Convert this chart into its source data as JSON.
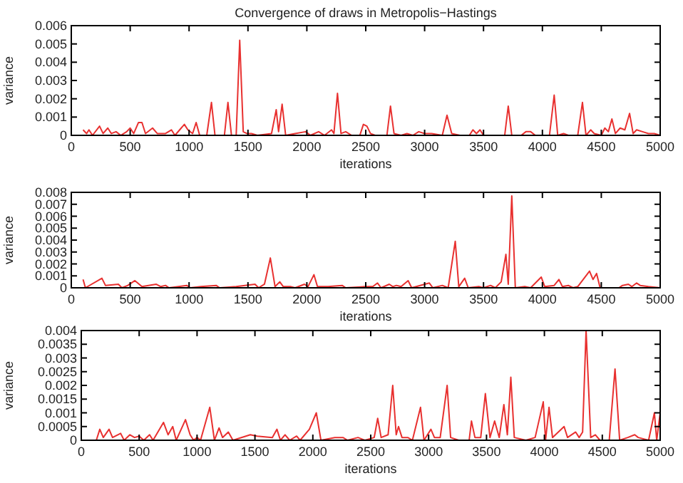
{
  "chart_data": [
    {
      "type": "line",
      "title": "Convergence of draws in Metropolis−Hastings",
      "xlabel": "iterations",
      "ylabel": "variance",
      "xlim": [
        0,
        5000
      ],
      "ylim": [
        0,
        0.006
      ],
      "xticks": [
        0,
        500,
        1000,
        1500,
        2000,
        2500,
        3000,
        3500,
        4000,
        4500,
        5000
      ],
      "yticks": [
        0,
        0.001,
        0.002,
        0.003,
        0.004,
        0.005,
        0.006
      ],
      "x": [
        100,
        130,
        150,
        180,
        240,
        270,
        310,
        340,
        380,
        420,
        470,
        500,
        530,
        570,
        600,
        630,
        690,
        730,
        800,
        850,
        880,
        960,
        990,
        1030,
        1060,
        1090,
        1150,
        1190,
        1220,
        1300,
        1330,
        1360,
        1400,
        1430,
        1460,
        1490,
        1530,
        1580,
        1700,
        1740,
        1760,
        1790,
        1820,
        1900,
        1990,
        2030,
        2100,
        2150,
        2210,
        2230,
        2260,
        2290,
        2330,
        2380,
        2450,
        2480,
        2510,
        2540,
        2580,
        2680,
        2710,
        2740,
        2800,
        2850,
        2900,
        2950,
        3000,
        3060,
        3150,
        3190,
        3230,
        3300,
        3380,
        3410,
        3440,
        3470,
        3500,
        3680,
        3710,
        3740,
        3820,
        3860,
        3900,
        3940,
        4060,
        4100,
        4130,
        4180,
        4220,
        4300,
        4340,
        4370,
        4410,
        4440,
        4500,
        4530,
        4560,
        4590,
        4620,
        4660,
        4700,
        4740,
        4770,
        4800,
        4850,
        4900,
        4950,
        5000
      ],
      "series": [
        {
          "color": "#e8302f",
          "values": [
            0.0003,
            0.0001,
            0.0003,
            0,
            0.0005,
            0.0001,
            0.0004,
            0.0001,
            0.0002,
            0,
            0.0002,
            0.0004,
            0.0001,
            0.0007,
            0.0007,
            0.0001,
            0.0004,
            0.0001,
            0.0001,
            0.0003,
            0,
            0.0006,
            0.0003,
            0.0001,
            0.0007,
            0,
            0,
            0.0018,
            0,
            0,
            0.0018,
            0,
            0,
            0.0052,
            0.0002,
            0.0001,
            0.0001,
            0,
            0.0001,
            0.0014,
            0.0002,
            0.0017,
            0,
            0.0001,
            0.0002,
            0,
            0.0002,
            0,
            0.0003,
            0.0001,
            0.0023,
            0.0001,
            0.0002,
            0,
            0,
            0.0006,
            0.0005,
            0.0001,
            0,
            0,
            0.0016,
            0.0001,
            0,
            0.0001,
            0,
            0.0002,
            0.0001,
            0.0001,
            0,
            0.0011,
            0.0001,
            0,
            0,
            0.0003,
            0.0001,
            0.0003,
            0,
            0,
            0.0016,
            0,
            0,
            0.0002,
            0.0002,
            0,
            0,
            0.0022,
            0,
            0.0001,
            0,
            0,
            0.0018,
            0,
            0.0003,
            0.0001,
            0,
            0.0004,
            0.0002,
            0.0009,
            0.0001,
            0.0004,
            0.0003,
            0.0012,
            0.0001,
            0.0003,
            0.0002,
            0.0001,
            0.0001,
            0
          ]
        }
      ]
    },
    {
      "type": "line",
      "xlabel": "iterations",
      "ylabel": "variance",
      "xlim": [
        0,
        5000
      ],
      "ylim": [
        0,
        0.008
      ],
      "xticks": [
        0,
        500,
        1000,
        1500,
        2000,
        2500,
        3000,
        3500,
        4000,
        4500,
        5000
      ],
      "yticks": [
        0,
        0.001,
        0.002,
        0.003,
        0.004,
        0.005,
        0.006,
        0.007,
        0.008
      ],
      "x": [
        100,
        120,
        260,
        290,
        400,
        430,
        480,
        540,
        600,
        720,
        760,
        800,
        830,
        980,
        1010,
        1100,
        1230,
        1260,
        1400,
        1560,
        1590,
        1640,
        1690,
        1730,
        1770,
        1800,
        1860,
        1900,
        1980,
        2010,
        2060,
        2090,
        2180,
        2300,
        2330,
        2500,
        2560,
        2600,
        2630,
        2700,
        2730,
        2760,
        2800,
        2860,
        2890,
        3040,
        3070,
        3150,
        3200,
        3260,
        3290,
        3340,
        3370,
        3460,
        3500,
        3560,
        3600,
        3650,
        3690,
        3710,
        3740,
        3770,
        3850,
        3900,
        3990,
        4020,
        4100,
        4140,
        4170,
        4220,
        4260,
        4300,
        4400,
        4430,
        4460,
        4490,
        4650,
        4680,
        4730,
        4760,
        4800,
        4830,
        4900,
        5000
      ],
      "series": [
        {
          "color": "#e8302f",
          "values": [
            0.0007,
            0,
            0.0008,
            0.0002,
            0.0003,
            0,
            0.0002,
            0.0006,
            0.0001,
            0.0003,
            0.0001,
            0.0002,
            0,
            0.0002,
            0,
            0.0001,
            0.0002,
            0,
            0.0001,
            0.0003,
            0,
            0.0003,
            0.0025,
            0.0001,
            0.0005,
            0.0001,
            0.0001,
            0,
            0.0003,
            0.0001,
            0.0011,
            0.0001,
            0.0001,
            0.0002,
            0,
            0.0001,
            0.0001,
            0.0004,
            0,
            0.0003,
            0.0001,
            0.0002,
            0.0001,
            0.0006,
            0,
            0.0004,
            0,
            0.0002,
            0,
            0.0039,
            0.0001,
            0.0008,
            0,
            0.0001,
            0,
            0.0002,
            0,
            0.0005,
            0.0028,
            0.0003,
            0.0077,
            0,
            0.0001,
            0,
            0.0009,
            0.0001,
            0.0002,
            0.0007,
            0.0001,
            0.0002,
            0,
            0.0001,
            0.0014,
            0.0007,
            0.0012,
            0,
            0,
            0.0002,
            0.0003,
            0.0001,
            0.0004,
            0.0002,
            0.0001,
            0
          ]
        }
      ]
    },
    {
      "type": "line",
      "xlabel": "iterations",
      "ylabel": "variance",
      "xlim": [
        0,
        5000
      ],
      "ylim": [
        0,
        0.004
      ],
      "xticks": [
        0,
        500,
        1000,
        1500,
        2000,
        2500,
        3000,
        3500,
        4000,
        4500,
        5000
      ],
      "yticks": [
        0,
        0.0005,
        0.001,
        0.0015,
        0.002,
        0.0025,
        0.003,
        0.0035,
        0.004
      ],
      "x": [
        100,
        130,
        160,
        190,
        240,
        270,
        340,
        370,
        420,
        460,
        500,
        540,
        590,
        620,
        710,
        750,
        790,
        820,
        900,
        940,
        970,
        1000,
        1030,
        1110,
        1150,
        1190,
        1220,
        1270,
        1310,
        1460,
        1520,
        1650,
        1690,
        1720,
        1760,
        1800,
        1860,
        1890,
        1970,
        2030,
        2070,
        2190,
        2260,
        2300,
        2390,
        2450,
        2530,
        2560,
        2590,
        2650,
        2690,
        2720,
        2740,
        2770,
        2820,
        2860,
        2930,
        2960,
        3020,
        3050,
        3100,
        3160,
        3190,
        3260,
        3350,
        3370,
        3400,
        3450,
        3490,
        3530,
        3570,
        3610,
        3650,
        3680,
        3710,
        3740,
        3840,
        3920,
        3990,
        4010,
        4040,
        4070,
        4170,
        4200,
        4270,
        4300,
        4330,
        4360,
        4400,
        4440,
        4480,
        4560,
        4610,
        4650,
        4720,
        4780,
        4810,
        4900,
        4950,
        4970,
        5000
      ],
      "series": [
        {
          "color": "#e8302f",
          "values": [
            0,
            0,
            0.0004,
            0.0001,
            0.0004,
            0.0001,
            0.00025,
            0,
            0.0002,
            0.0001,
            0.00015,
            0,
            0.0002,
            0,
            0.00065,
            0.0002,
            0.0005,
            0,
            0.00075,
            0.0002,
            0,
            0.0001,
            0,
            0.0012,
            0,
            0.00045,
            0.0001,
            0.0003,
            0,
            0.0002,
            0.00015,
            0.0001,
            0.0004,
            0,
            0.0002,
            0,
            0.00015,
            0,
            0.0004,
            0.001,
            0,
            0.0001,
            0.0001,
            0,
            0.0001,
            0,
            0.0001,
            0.0008,
            0.0001,
            0.0002,
            0.002,
            0.0002,
            0.0005,
            0.0001,
            0.0001,
            0,
            0.0012,
            0,
            0.0004,
            0.0001,
            0.0001,
            0.002,
            0.0001,
            0,
            0,
            0.0007,
            0.0001,
            0.0001,
            0.0017,
            0.0001,
            0.0007,
            0.0001,
            0.0013,
            0.0002,
            0.0023,
            0.0001,
            0,
            0.0001,
            0.0014,
            0,
            0.0012,
            0.0001,
            0.0005,
            0.0001,
            0.0003,
            0.0001,
            0.0003,
            0.004,
            0.0001,
            0.0002,
            0,
            0,
            0.0026,
            0,
            0.0001,
            0.0002,
            0.0001,
            0,
            0.001,
            0,
            0.001
          ]
        }
      ]
    }
  ]
}
